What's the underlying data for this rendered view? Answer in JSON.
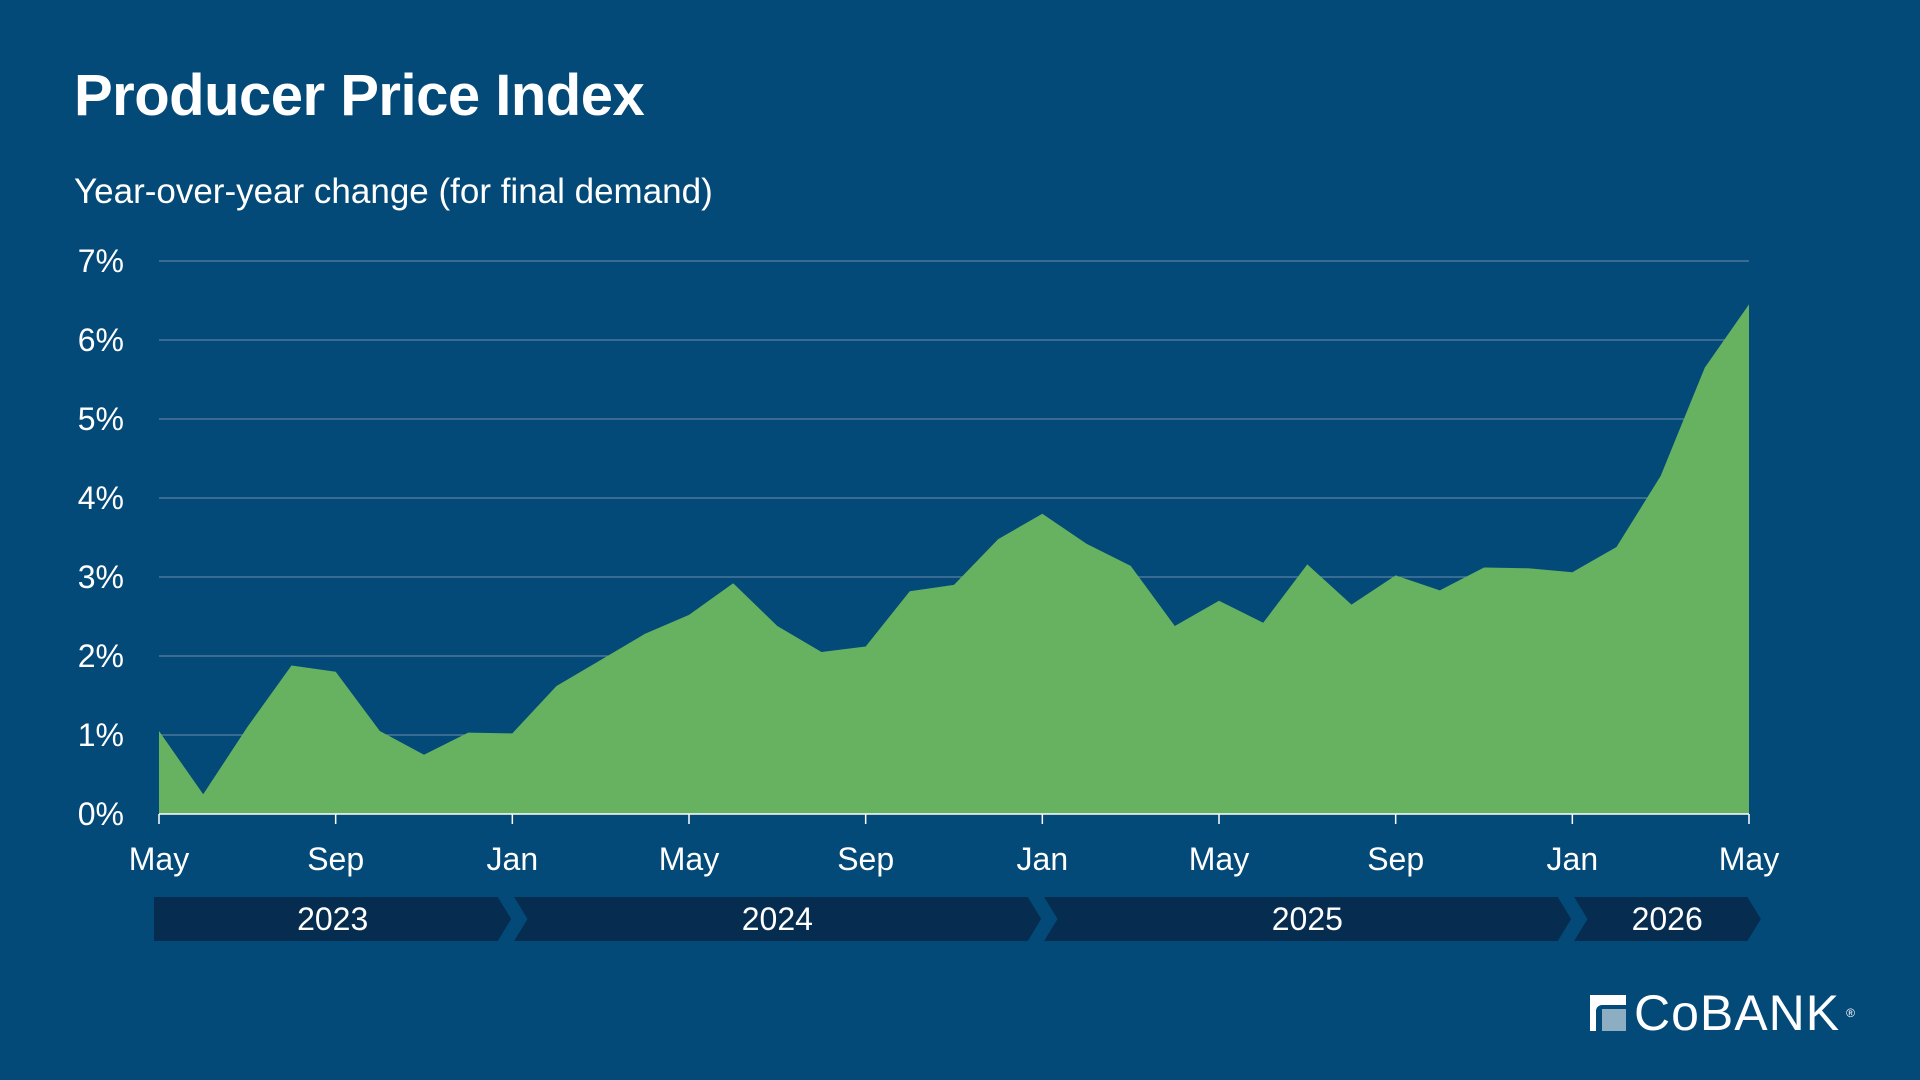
{
  "title": "Producer Price Index",
  "subtitle": "Year-over-year change (for final demand)",
  "logo": {
    "text": "CoBANK",
    "mark": "®"
  },
  "colors": {
    "background": "#034a79",
    "area": "#66b261",
    "grid": "#5b7fa3",
    "year_band": "#062d50"
  },
  "chart_data": {
    "type": "area",
    "ylim": [
      0,
      7
    ],
    "y_ticks": [
      {
        "value": 0,
        "label": "0%"
      },
      {
        "value": 1,
        "label": "1%"
      },
      {
        "value": 2,
        "label": "2%"
      },
      {
        "value": 3,
        "label": "3%"
      },
      {
        "value": 4,
        "label": "4%"
      },
      {
        "value": 5,
        "label": "5%"
      },
      {
        "value": 6,
        "label": "6%"
      },
      {
        "value": 7,
        "label": "7%"
      }
    ],
    "x_ticks": [
      {
        "index": 0,
        "label": "May"
      },
      {
        "index": 4,
        "label": "Sep"
      },
      {
        "index": 8,
        "label": "Jan"
      },
      {
        "index": 12,
        "label": "May"
      },
      {
        "index": 16,
        "label": "Sep"
      },
      {
        "index": 20,
        "label": "Jan"
      },
      {
        "index": 24,
        "label": "May"
      },
      {
        "index": 28,
        "label": "Sep"
      },
      {
        "index": 32,
        "label": "Jan"
      },
      {
        "index": 36,
        "label": "May"
      }
    ],
    "years": [
      {
        "label": "2023",
        "start": 0,
        "end": 8
      },
      {
        "label": "2024",
        "start": 8,
        "end": 20
      },
      {
        "label": "2025",
        "start": 20,
        "end": 32
      },
      {
        "label": "2026",
        "start": 32,
        "end": 36
      }
    ],
    "x": [
      "2023-05",
      "2023-06",
      "2023-07",
      "2023-08",
      "2023-09",
      "2023-10",
      "2023-11",
      "2023-12",
      "2024-01",
      "2024-02",
      "2024-03",
      "2024-04",
      "2024-05",
      "2024-06",
      "2024-07",
      "2024-08",
      "2024-09",
      "2024-10",
      "2024-11",
      "2024-12",
      "2025-01",
      "2025-02",
      "2025-03",
      "2025-04",
      "2025-05",
      "2025-06",
      "2025-07",
      "2025-08",
      "2025-09",
      "2025-10",
      "2025-11",
      "2025-12",
      "2026-01",
      "2026-02",
      "2026-03",
      "2026-04",
      "2026-05"
    ],
    "values": [
      1.05,
      0.25,
      1.1,
      1.88,
      1.8,
      1.05,
      0.75,
      1.03,
      1.02,
      1.62,
      1.95,
      2.28,
      2.52,
      2.92,
      2.38,
      2.05,
      2.12,
      2.82,
      2.9,
      3.48,
      3.8,
      3.42,
      3.14,
      2.38,
      2.7,
      2.42,
      3.16,
      2.65,
      3.02,
      2.83,
      3.12,
      3.11,
      3.06,
      3.38,
      4.28,
      5.65,
      6.45
    ]
  }
}
